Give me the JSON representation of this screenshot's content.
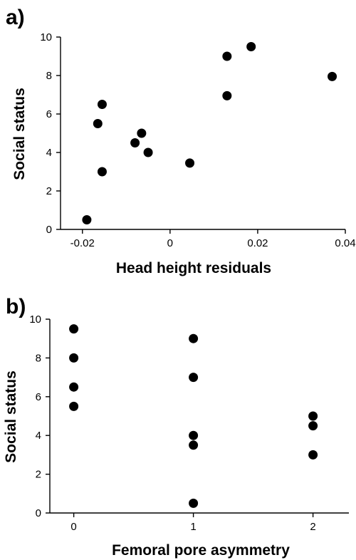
{
  "chart_data": [
    {
      "type": "scatter",
      "panel_label": "a)",
      "title": "",
      "xlabel": "Head height residuals",
      "ylabel": "Social status",
      "xlim": [
        -0.025,
        0.04
      ],
      "ylim": [
        0,
        10
      ],
      "x_ticks": [
        -0.02,
        0,
        0.02,
        0.04
      ],
      "x_tick_labels": [
        "-0.02",
        "0",
        "0.02",
        "0.04"
      ],
      "y_ticks": [
        0,
        2,
        4,
        6,
        8,
        10
      ],
      "y_tick_labels": [
        "0",
        "2",
        "4",
        "6",
        "8",
        "10"
      ],
      "grid": false,
      "marker_color": "#000000",
      "points": [
        {
          "x": -0.019,
          "y": 0.5
        },
        {
          "x": -0.0155,
          "y": 3.0
        },
        {
          "x": -0.0165,
          "y": 5.5
        },
        {
          "x": -0.0155,
          "y": 6.5
        },
        {
          "x": -0.008,
          "y": 4.5
        },
        {
          "x": -0.0065,
          "y": 5.0
        },
        {
          "x": -0.005,
          "y": 4.0
        },
        {
          "x": 0.0045,
          "y": 3.45
        },
        {
          "x": 0.013,
          "y": 6.95
        },
        {
          "x": 0.013,
          "y": 9.0
        },
        {
          "x": 0.0185,
          "y": 9.5
        },
        {
          "x": 0.037,
          "y": 7.95
        }
      ]
    },
    {
      "type": "scatter",
      "panel_label": "b)",
      "title": "",
      "xlabel": "Femoral pore asymmetry",
      "ylabel": "Social status",
      "xlim": [
        -0.2,
        2.3
      ],
      "ylim": [
        0,
        10
      ],
      "x_ticks": [
        0,
        1,
        2
      ],
      "x_tick_labels": [
        "0",
        "1",
        "2"
      ],
      "y_ticks": [
        0,
        2,
        4,
        6,
        8,
        10
      ],
      "y_tick_labels": [
        "0",
        "2",
        "4",
        "6",
        "8",
        "10"
      ],
      "grid": false,
      "marker_color": "#000000",
      "points": [
        {
          "x": 0,
          "y": 9.5
        },
        {
          "x": 0,
          "y": 8.0
        },
        {
          "x": 0,
          "y": 6.5
        },
        {
          "x": 0,
          "y": 5.5
        },
        {
          "x": 1,
          "y": 9.0
        },
        {
          "x": 1,
          "y": 7.0
        },
        {
          "x": 1,
          "y": 4.0
        },
        {
          "x": 1,
          "y": 3.5
        },
        {
          "x": 1,
          "y": 0.5
        },
        {
          "x": 2,
          "y": 5.0
        },
        {
          "x": 2,
          "y": 4.5
        },
        {
          "x": 2,
          "y": 3.0
        }
      ]
    }
  ]
}
